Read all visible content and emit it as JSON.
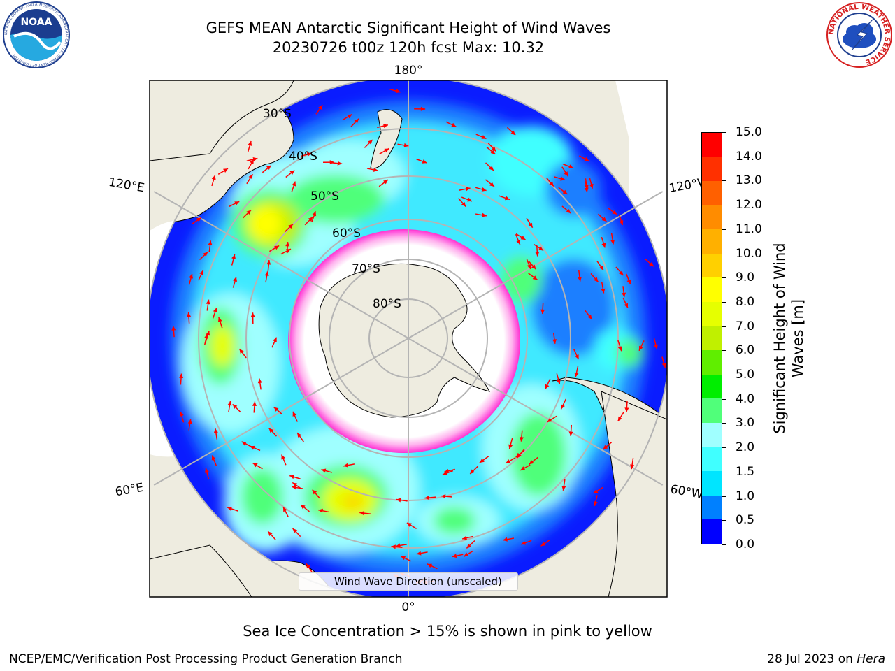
{
  "title": {
    "line1": "GEFS MEAN Antarctic Significant Height of Wind Waves",
    "line2": "20230726 t00z 120h fcst   Max: 10.32"
  },
  "logos": {
    "noaa": "NOAA",
    "noaa_ring": "NATIONAL OCEANIC AND ATMOSPHERIC ADMINISTRATION · U.S. DEPARTMENT OF COMMERCE",
    "nws_ring": "NATIONAL WEATHER SERVICE"
  },
  "map": {
    "longitude_labels": [
      {
        "id": "lon-180",
        "text": "180°"
      },
      {
        "id": "lon-0",
        "text": "0°"
      },
      {
        "id": "lon-120e",
        "text": "120°E"
      },
      {
        "id": "lon-60e",
        "text": "60°E"
      },
      {
        "id": "lon-120w",
        "text": "120°W"
      },
      {
        "id": "lon-60w",
        "text": "60°W"
      }
    ],
    "latitude_labels": [
      "30°S",
      "40°S",
      "50°S",
      "60°S",
      "70°S",
      "80°S"
    ],
    "colors": {
      "land": "#eeece0",
      "ice_zone": "#ffffff",
      "ice_edge": "#ff66dd",
      "graticule": "#b4b4b4",
      "arrow": "#ff0000"
    }
  },
  "legend": {
    "label": "Wind Wave Direction (unscaled)"
  },
  "colorbar": {
    "label_line1": "Significant Height of Wind",
    "label_line2": "Waves [m]",
    "ticks": [
      "0.0",
      "0.5",
      "1.0",
      "1.5",
      "2.0",
      "3.0",
      "4.0",
      "5.0",
      "6.0",
      "7.0",
      "8.0",
      "9.0",
      "10.0",
      "11.0",
      "12.0",
      "13.0",
      "14.0",
      "15.0"
    ],
    "colors": [
      "#0000ff",
      "#0080ff",
      "#00e5ff",
      "#40ffff",
      "#a0ffff",
      "#50ff7a",
      "#00ee00",
      "#60ee00",
      "#c0f000",
      "#e6ff00",
      "#ffff00",
      "#ffd000",
      "#ffb000",
      "#ff8c00",
      "#ff6000",
      "#ff3000",
      "#ff0000"
    ]
  },
  "footnote": "Sea Ice Concentration > 15% is shown in pink to yellow",
  "footer": {
    "left": "NCEP/EMC/Verification Post Processing Product Generation Branch",
    "right_prefix": "28 Jul 2023 on ",
    "right_host": "Hera"
  }
}
